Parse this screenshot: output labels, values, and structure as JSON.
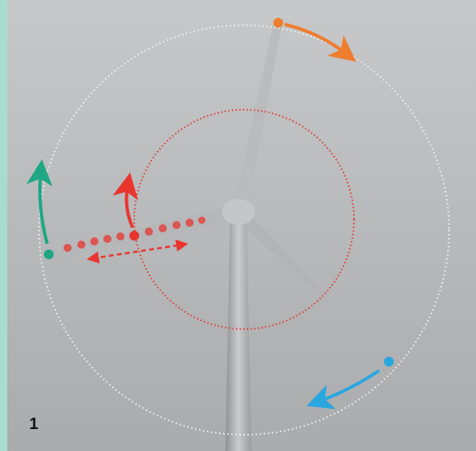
{
  "figure_label": "1"
}
